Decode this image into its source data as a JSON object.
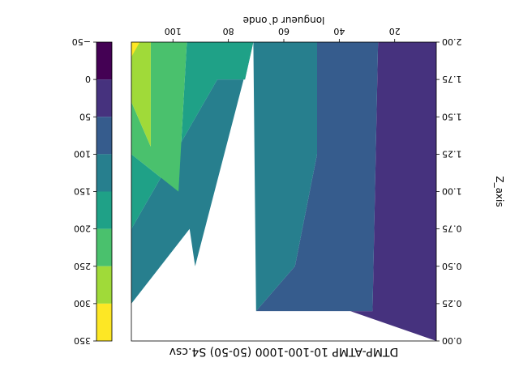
{
  "chart_data": {
    "type": "contour",
    "orientation_note": "rendered rotated 180 degrees",
    "title": "DTMP-ATMP 10-100-1000 (50-50) S4.csv",
    "xlabel": "longueur d`onde",
    "ylabel": "Z_axis",
    "xlim": [
      5,
      115
    ],
    "ylim": [
      0,
      2
    ],
    "x_ticks": [
      20,
      40,
      60,
      80,
      100
    ],
    "x_tick_labels": [
      "20",
      "40",
      "60",
      "80",
      "100"
    ],
    "y_ticks": [
      0,
      0.25,
      0.5,
      0.75,
      1.0,
      1.25,
      1.5,
      1.75,
      2.0
    ],
    "y_tick_labels": [
      "0.00",
      "0.25",
      "0.50",
      "0.75",
      "1.00",
      "1.25",
      "1.50",
      "1.75",
      "2.00"
    ],
    "levels": [
      -50,
      0,
      50,
      100,
      150,
      200,
      250,
      300,
      350
    ],
    "level_labels": [
      "−50",
      "0",
      "50",
      "100",
      "150",
      "200",
      "250",
      "300",
      "350"
    ],
    "level_colors": [
      "#440154",
      "#46327e",
      "#365c8d",
      "#277f8e",
      "#1fa187",
      "#4ac16d",
      "#a0da39",
      "#fde725"
    ],
    "contour_bands": [
      {
        "range": [
          0,
          50
        ],
        "color": "#46327e",
        "polygon": [
          [
            5,
            0
          ],
          [
            5,
            2
          ],
          [
            26,
            2
          ],
          [
            28,
            0.2
          ],
          [
            36,
            0.2
          ]
        ]
      },
      {
        "range": [
          50,
          100
        ],
        "color": "#365c8d",
        "polygon": [
          [
            36,
            0.2
          ],
          [
            28,
            0.2
          ],
          [
            26,
            2
          ],
          [
            48,
            2
          ],
          [
            48,
            1.25
          ],
          [
            56,
            0.5
          ],
          [
            70,
            0.2
          ]
        ]
      },
      {
        "range": [
          100,
          150
        ],
        "color": "#277f8e",
        "polygon": [
          [
            70,
            0.2
          ],
          [
            56,
            0.5
          ],
          [
            48,
            1.25
          ],
          [
            48,
            2
          ],
          [
            71,
            2
          ],
          [
            92,
            0.5
          ],
          [
            94,
            0.75
          ],
          [
            115,
            0.25
          ],
          [
            115,
            0.75
          ],
          [
            84,
            1.75
          ],
          [
            74,
            1.75
          ],
          [
            71,
            2
          ]
        ]
      },
      {
        "range": [
          150,
          200
        ],
        "color": "#1fa187",
        "polygon": [
          [
            115,
            0.75
          ],
          [
            84,
            1.75
          ],
          [
            74,
            1.75
          ],
          [
            71,
            2
          ],
          [
            95,
            2
          ],
          [
            98,
            1.0
          ],
          [
            115,
            1.25
          ]
        ]
      },
      {
        "range": [
          200,
          250
        ],
        "color": "#4ac16d",
        "polygon": [
          [
            115,
            1.25
          ],
          [
            98,
            1.0
          ],
          [
            95,
            2
          ],
          [
            108,
            2
          ],
          [
            108,
            1.3
          ],
          [
            115,
            1.6
          ]
        ]
      },
      {
        "range": [
          250,
          300
        ],
        "color": "#a0da39",
        "polygon": [
          [
            115,
            1.6
          ],
          [
            108,
            1.3
          ],
          [
            108,
            2
          ],
          [
            115,
            2
          ]
        ]
      },
      {
        "range": [
          300,
          350
        ],
        "color": "#fde725",
        "polygon": [
          [
            115,
            1.9
          ],
          [
            112,
            2
          ],
          [
            115,
            2
          ]
        ]
      }
    ]
  }
}
